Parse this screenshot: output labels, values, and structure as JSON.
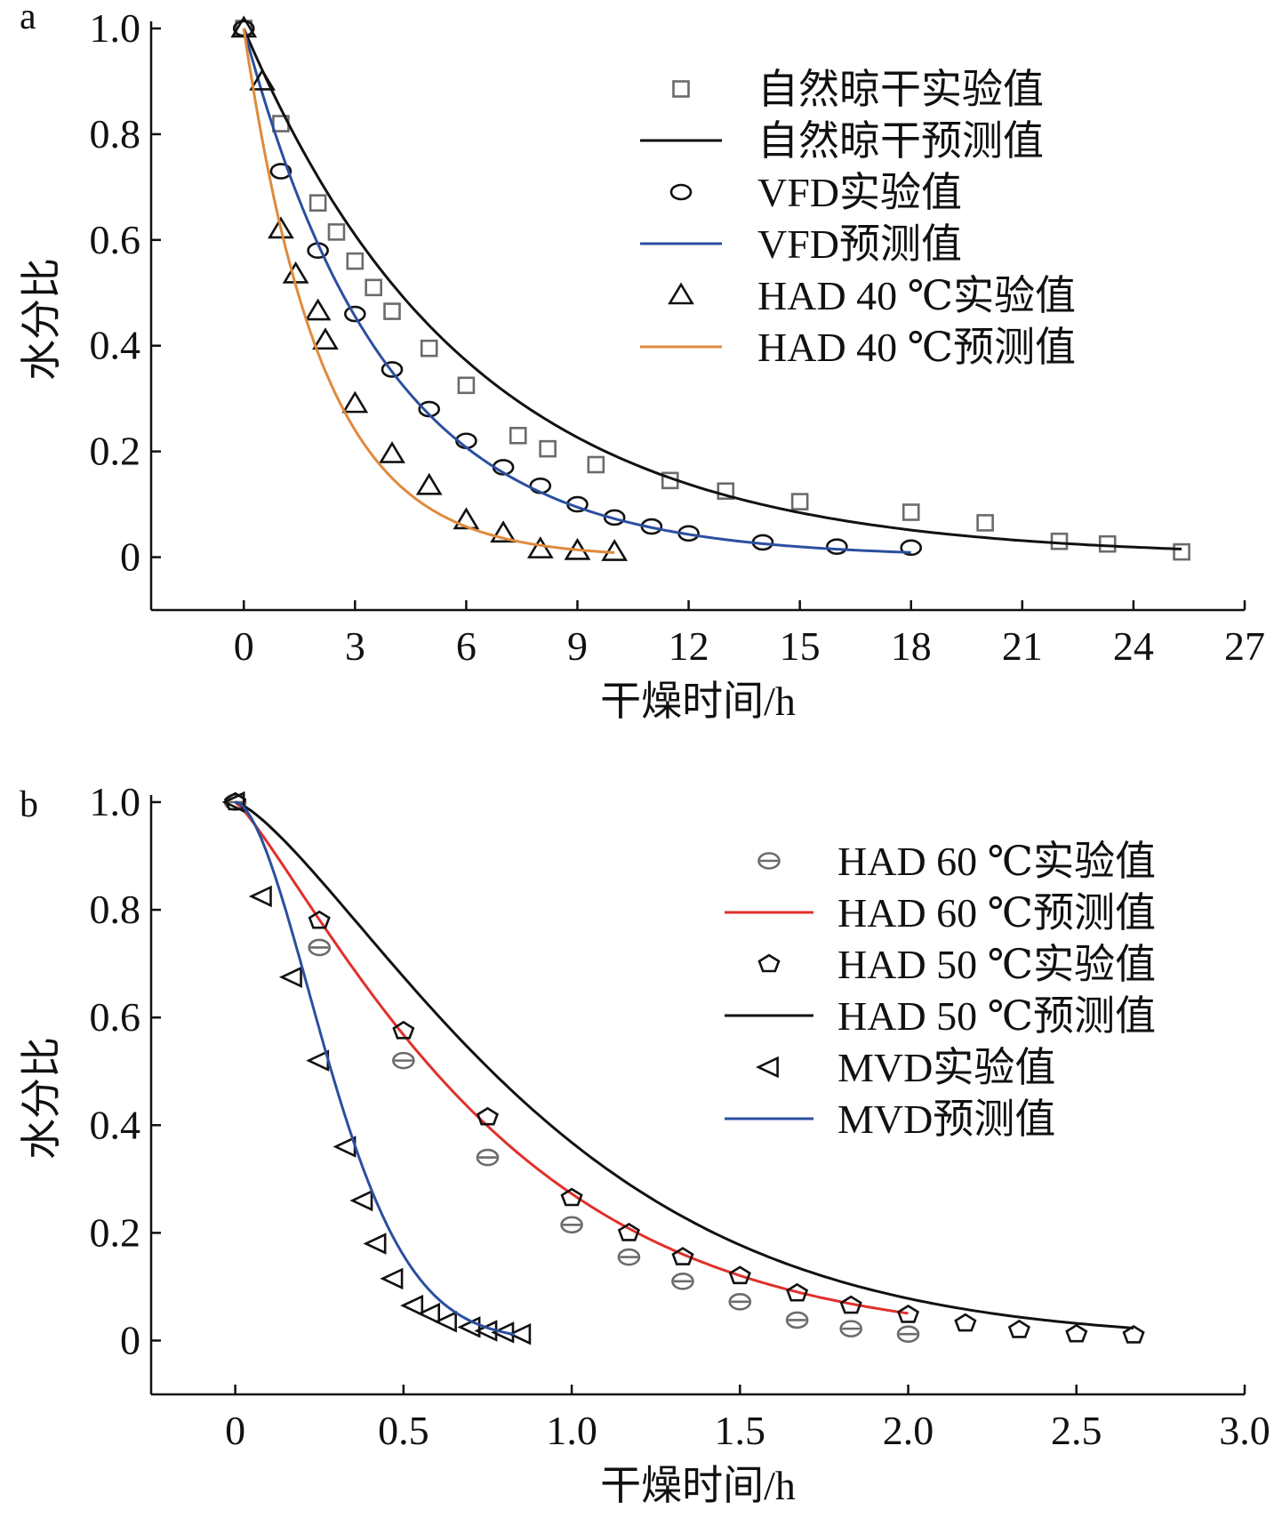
{
  "chart_data": [
    {
      "panel_label": "a",
      "type": "scatter",
      "xlabel": "干燥时间/h",
      "ylabel": "水分比",
      "xlim": [
        -2.5,
        27
      ],
      "ylim": [
        -0.1,
        1.0
      ],
      "xticks": [
        0,
        3,
        6,
        9,
        12,
        15,
        18,
        21,
        24,
        27
      ],
      "yticks": [
        0,
        0.2,
        0.4,
        0.6,
        0.8,
        1.0
      ],
      "xtick_labels": [
        "0",
        "3",
        "6",
        "9",
        "12",
        "15",
        "18",
        "21",
        "24",
        "27"
      ],
      "ytick_labels": [
        "0",
        "0.2",
        "0.4",
        "0.6",
        "0.8",
        "1.0"
      ],
      "grid": false,
      "legend": "top-right",
      "series": [
        {
          "name": "自然晾干实验值",
          "kind": "markers",
          "marker": "square",
          "color": "#6b6b6b",
          "x": [
            0,
            1,
            2,
            2.5,
            3,
            3.5,
            4,
            5,
            6,
            7.4,
            8.2,
            9.5,
            11.5,
            13,
            15,
            18,
            20,
            22,
            23.3,
            25.3
          ],
          "y": [
            1.0,
            0.82,
            0.67,
            0.615,
            0.56,
            0.51,
            0.465,
            0.395,
            0.325,
            0.23,
            0.205,
            0.175,
            0.145,
            0.125,
            0.105,
            0.085,
            0.065,
            0.03,
            0.025,
            0.01
          ]
        },
        {
          "name": "自然晾干预测值",
          "kind": "line",
          "color": "#111111",
          "k": 0.165,
          "x_start": 0,
          "x_end": 25.3
        },
        {
          "name": "VFD实验值",
          "kind": "markers",
          "marker": "circle",
          "color": "#111111",
          "x": [
            0,
            1,
            2,
            3,
            4,
            5,
            6,
            7,
            8,
            9,
            10,
            11,
            12,
            14,
            16,
            18
          ],
          "y": [
            1.0,
            0.73,
            0.58,
            0.46,
            0.355,
            0.28,
            0.22,
            0.17,
            0.135,
            0.1,
            0.075,
            0.058,
            0.045,
            0.028,
            0.02,
            0.018
          ]
        },
        {
          "name": "VFD预测值",
          "kind": "line",
          "color": "#2b4fa0",
          "k": 0.262,
          "x_start": 0,
          "x_end": 18
        },
        {
          "name": "HAD 40 ℃实验值",
          "kind": "markers",
          "marker": "triangle-up",
          "color": "#111111",
          "x": [
            0,
            0.5,
            1,
            1.4,
            2,
            2.2,
            3,
            4,
            5,
            6,
            7,
            8,
            9,
            10
          ],
          "y": [
            1.0,
            0.9,
            0.62,
            0.535,
            0.465,
            0.41,
            0.29,
            0.195,
            0.135,
            0.07,
            0.045,
            0.015,
            0.012,
            0.01
          ]
        },
        {
          "name": "HAD 40 ℃预测值",
          "kind": "line",
          "color": "#e08a3c",
          "k": 0.475,
          "x_start": 0,
          "x_end": 10
        }
      ]
    },
    {
      "panel_label": "b",
      "type": "scatter",
      "xlabel": "干燥时间/h",
      "ylabel": "水分比",
      "xlim": [
        -0.25,
        3.0
      ],
      "ylim": [
        -0.1,
        1.0
      ],
      "xticks": [
        0,
        0.5,
        1.0,
        1.5,
        2.0,
        2.5,
        3.0
      ],
      "yticks": [
        0,
        0.2,
        0.4,
        0.6,
        0.8,
        1.0
      ],
      "xtick_labels": [
        "0",
        "0.5",
        "1.0",
        "1.5",
        "2.0",
        "2.5",
        "3.0"
      ],
      "ytick_labels": [
        "0",
        "0.2",
        "0.4",
        "0.6",
        "0.8",
        "1.0"
      ],
      "grid": false,
      "legend": "top-right",
      "series": [
        {
          "name": "HAD 60 ℃实验值",
          "kind": "markers",
          "marker": "circle-bar",
          "color": "#6b6b6b",
          "x": [
            0,
            0.25,
            0.5,
            0.75,
            1.0,
            1.17,
            1.33,
            1.5,
            1.67,
            1.83,
            2.0
          ],
          "y": [
            1.0,
            0.73,
            0.52,
            0.34,
            0.215,
            0.155,
            0.11,
            0.072,
            0.038,
            0.022,
            0.012
          ]
        },
        {
          "name": "HAD 60 ℃预测值",
          "kind": "line",
          "color": "#e0302a",
          "k": 1.3,
          "n": 1.2,
          "x_start": 0,
          "x_end": 2.0
        },
        {
          "name": "HAD 50 ℃实验值",
          "kind": "markers",
          "marker": "pentagon",
          "color": "#111111",
          "x": [
            0,
            0.25,
            0.5,
            0.75,
            1.0,
            1.17,
            1.33,
            1.5,
            1.67,
            1.83,
            2.0,
            2.17,
            2.33,
            2.5,
            2.67
          ],
          "y": [
            1.0,
            0.78,
            0.575,
            0.415,
            0.265,
            0.2,
            0.155,
            0.12,
            0.088,
            0.065,
            0.048,
            0.032,
            0.02,
            0.012,
            0.01
          ]
        },
        {
          "name": "HAD 50 ℃预测值",
          "kind": "line",
          "color": "#111111",
          "k": 1.0,
          "n": 1.35,
          "x_start": 0,
          "x_end": 2.67
        },
        {
          "name": "MVD实验值",
          "kind": "markers",
          "marker": "triangle-left",
          "color": "#111111",
          "x": [
            0,
            0.08,
            0.17,
            0.25,
            0.33,
            0.38,
            0.42,
            0.47,
            0.53,
            0.58,
            0.63,
            0.7,
            0.75,
            0.8,
            0.85
          ],
          "y": [
            1.0,
            0.825,
            0.675,
            0.52,
            0.36,
            0.26,
            0.18,
            0.115,
            0.065,
            0.05,
            0.035,
            0.025,
            0.018,
            0.015,
            0.012
          ]
        },
        {
          "name": "MVD预测值",
          "kind": "line",
          "color": "#2b4fa0",
          "k": 6.2,
          "n": 1.75,
          "x_start": 0,
          "x_end": 0.83
        }
      ]
    }
  ]
}
